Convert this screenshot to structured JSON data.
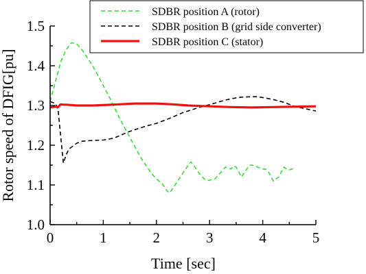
{
  "chart_data": {
    "type": "line",
    "xlabel": "Time [sec]",
    "ylabel": "Rotor speed of DFIG[pu]",
    "xlim": [
      0,
      5
    ],
    "ylim": [
      1.0,
      1.5
    ],
    "x_ticks": [
      "0",
      "1",
      "2",
      "3",
      "4",
      "5"
    ],
    "y_ticks": [
      "1.0",
      "1.1",
      "1.2",
      "1.3",
      "1.4",
      "1.5"
    ],
    "grid": false,
    "legend_position": "top-right",
    "series": [
      {
        "name": "SDBR position A (rotor)",
        "color": "#33dd33",
        "dash": "dashed",
        "x": [
          0,
          0.1,
          0.2,
          0.3,
          0.4,
          0.5,
          0.6,
          0.7,
          0.8,
          0.9,
          1.0,
          1.1,
          1.2,
          1.3,
          1.4,
          1.5,
          1.6,
          1.7,
          1.8,
          1.9,
          2.0,
          2.1,
          2.2,
          2.25,
          2.3,
          2.4,
          2.5,
          2.6,
          2.65,
          2.7,
          2.8,
          2.9,
          2.95,
          3.0,
          3.1,
          3.2,
          3.3,
          3.4,
          3.45,
          3.5,
          3.6,
          3.7,
          3.75,
          3.8,
          3.9,
          4.0,
          4.05,
          4.1,
          4.2,
          4.3,
          4.4,
          4.45,
          4.5,
          4.55,
          4.6
        ],
        "y": [
          1.31,
          1.36,
          1.41,
          1.44,
          1.458,
          1.455,
          1.44,
          1.42,
          1.4,
          1.375,
          1.35,
          1.325,
          1.298,
          1.27,
          1.245,
          1.22,
          1.195,
          1.17,
          1.15,
          1.13,
          1.115,
          1.105,
          1.085,
          1.08,
          1.09,
          1.11,
          1.13,
          1.15,
          1.158,
          1.15,
          1.13,
          1.115,
          1.111,
          1.112,
          1.115,
          1.13,
          1.145,
          1.14,
          1.148,
          1.145,
          1.12,
          1.14,
          1.15,
          1.15,
          1.145,
          1.14,
          1.14,
          1.135,
          1.11,
          1.12,
          1.145,
          1.14,
          1.138,
          1.14,
          1.145
        ]
      },
      {
        "name": "SDBR position B (grid side converter)",
        "color": "#000000",
        "dash": "dashed",
        "x": [
          0,
          0.1,
          0.15,
          0.2,
          0.25,
          0.3,
          0.35,
          0.4,
          0.5,
          0.6,
          0.8,
          1.0,
          1.2,
          1.5,
          1.8,
          2.0,
          2.2,
          2.5,
          2.8,
          3.0,
          3.2,
          3.4,
          3.6,
          3.8,
          3.9,
          4.0,
          4.2,
          4.4,
          4.6,
          4.8,
          5.0
        ],
        "y": [
          1.31,
          1.305,
          1.29,
          1.22,
          1.155,
          1.175,
          1.19,
          1.195,
          1.205,
          1.21,
          1.212,
          1.213,
          1.218,
          1.235,
          1.248,
          1.255,
          1.265,
          1.282,
          1.295,
          1.302,
          1.31,
          1.317,
          1.321,
          1.322,
          1.322,
          1.32,
          1.315,
          1.308,
          1.298,
          1.292,
          1.286
        ]
      },
      {
        "name": "SDBR position C (stator)",
        "color": "#ee1111",
        "dash": "solid",
        "x": [
          0,
          0.1,
          0.15,
          0.2,
          0.25,
          0.3,
          0.5,
          0.8,
          1.0,
          1.3,
          1.6,
          2.0,
          2.3,
          2.6,
          3.0,
          3.4,
          3.8,
          4.2,
          4.6,
          5.0
        ],
        "y": [
          1.295,
          1.297,
          1.296,
          1.303,
          1.302,
          1.302,
          1.3,
          1.3,
          1.301,
          1.303,
          1.305,
          1.305,
          1.303,
          1.3,
          1.298,
          1.296,
          1.295,
          1.296,
          1.297,
          1.298
        ]
      }
    ]
  }
}
